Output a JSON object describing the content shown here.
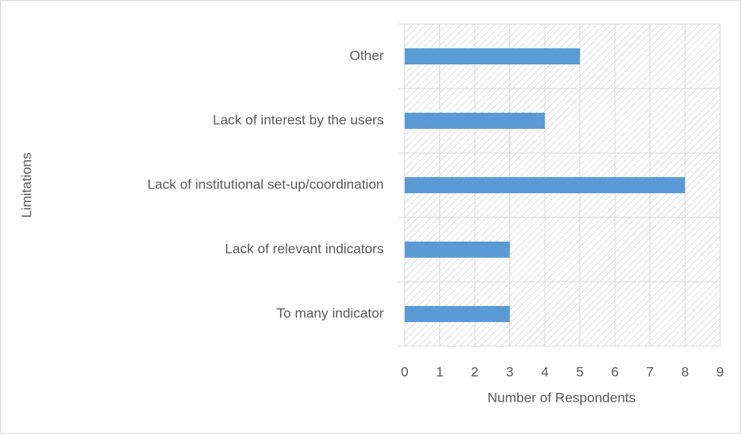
{
  "chart_data": {
    "type": "barh",
    "categories": [
      "Other",
      "Lack of interest by the users",
      "Lack of institutional set-up/coordination",
      "Lack of relevant indicators",
      "To many indicator"
    ],
    "values": [
      5,
      4,
      8,
      3,
      3
    ],
    "color": "#5b9bd5",
    "xlabel": "Number of Respondents",
    "ylabel": "Limitations",
    "xlim": [
      0,
      9
    ],
    "xticks": [
      0,
      1,
      2,
      3,
      4,
      5,
      6,
      7,
      8,
      9
    ],
    "grid": true
  }
}
